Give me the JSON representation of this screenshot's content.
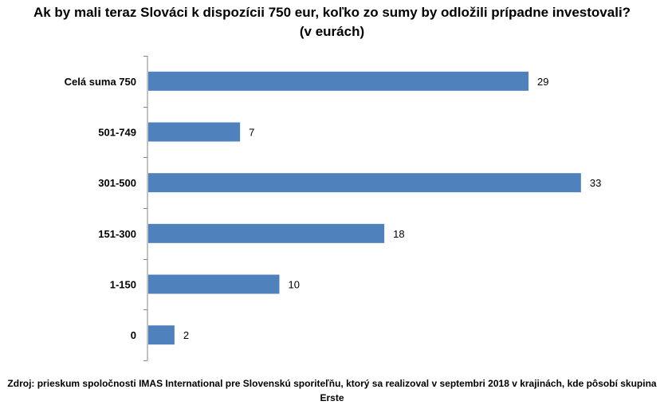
{
  "chart_data": {
    "type": "bar",
    "orientation": "horizontal",
    "title": "Ak by mali teraz Slováci k dispozícii 750 eur, koľko zo sumy by odložili prípadne investovali?",
    "subtitle": "(v eurách)",
    "categories": [
      "Celá suma 750",
      "501-749",
      "301-500",
      "151-300",
      "1-150",
      "0"
    ],
    "values": [
      29,
      7,
      33,
      18,
      10,
      2
    ],
    "data_labels": [
      "29",
      "7",
      "33",
      "18",
      "10",
      "2"
    ],
    "xlabel": "",
    "ylabel": "",
    "xlim": [
      0,
      39
    ],
    "grid": false,
    "legend": "none",
    "bar_color": "#4F81BD",
    "source": "Zdroj: prieskum spoločnosti IMAS International pre Slovenskú sporiteľňu, ktorý sa realizoval v septembri 2018 v krajinách, kde pôsobí skupina Erste"
  }
}
